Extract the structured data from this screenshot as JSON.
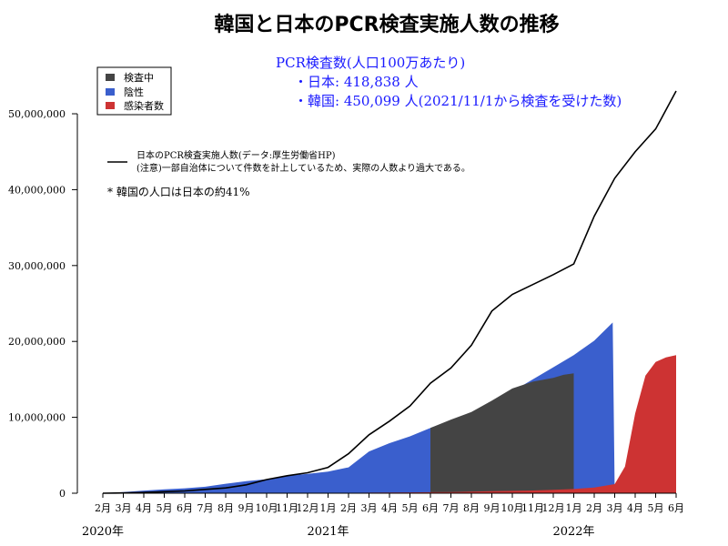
{
  "chart_data": {
    "type": "area",
    "title": "韓国と日本のPCR検査実施人数の推移",
    "info_lines": [
      "PCR検査数(人口100万あたり)",
      "・日本: 418,838 人",
      "・韓国: 450,099 人(2021/11/1から検査を受けた数)"
    ],
    "legend": {
      "placement": "top-left",
      "items": [
        {
          "label": "検査中",
          "color": "#444444"
        },
        {
          "label": "陰性",
          "color": "#3a5fcd"
        },
        {
          "label": "感染者数",
          "color": "#cd3333"
        }
      ]
    },
    "line_note": {
      "label": "日本のPCR検査実施人数(データ:厚生労働省HP)",
      "caveat": "(注意)一部自治体について件数を計上しているため、実際の人数より過大である。",
      "color": "#000000"
    },
    "footnote": "* 韓国の人口は日本の約41%",
    "x_unit": "month_index_from_2020_02",
    "x_tick_labels": [
      "2月",
      "3月",
      "4月",
      "5月",
      "6月",
      "7月",
      "8月",
      "9月",
      "10月",
      "11月",
      "12月",
      "1月",
      "2月",
      "3月",
      "4月",
      "5月",
      "6月",
      "7月",
      "8月",
      "9月",
      "10月",
      "11月",
      "12月",
      "1月",
      "2月",
      "3月",
      "4月",
      "5月",
      "6月"
    ],
    "year_labels": [
      {
        "label": "2020年",
        "at": 0
      },
      {
        "label": "2021年",
        "at": 11
      },
      {
        "label": "2022年",
        "at": 23
      }
    ],
    "y_ticks": [
      0,
      10000000,
      20000000,
      30000000,
      40000000,
      50000000
    ],
    "y_tick_labels": [
      "0",
      "10,000,000",
      "20,000,000",
      "30,000,000",
      "40,000,000",
      "50,000,000"
    ],
    "ylim": [
      0,
      53000000
    ],
    "xlim": [
      0,
      28
    ],
    "series": [
      {
        "name": "陰性",
        "color": "#3a5fcd",
        "x": [
          0,
          1,
          2,
          3,
          4,
          5,
          6,
          7,
          8,
          9,
          10,
          11,
          12,
          13,
          14,
          15,
          16,
          17,
          18,
          19,
          20,
          21,
          22,
          23,
          24,
          24.9,
          25
        ],
        "values": [
          0,
          150000,
          350000,
          500000,
          650000,
          850000,
          1250000,
          1600000,
          1850000,
          2300000,
          2550000,
          2850000,
          3400000,
          5500000,
          6600000,
          7500000,
          8600000,
          9600000,
          10600000,
          12000000,
          13400000,
          15000000,
          16600000,
          18200000,
          20100000,
          22500000,
          0
        ]
      },
      {
        "name": "検査中",
        "color": "#444444",
        "x": [
          16,
          17,
          18,
          19,
          20,
          21,
          22,
          22.5,
          23
        ],
        "values": [
          0,
          0,
          0,
          0,
          0,
          0,
          0,
          0,
          0
        ],
        "top": [
          8600000,
          9700000,
          10700000,
          12200000,
          13800000,
          14700000,
          15200000,
          15600000,
          15800000
        ]
      },
      {
        "name": "感染者数",
        "color": "#cd3333",
        "x": [
          0,
          1,
          2,
          3,
          4,
          5,
          6,
          7,
          8,
          9,
          10,
          11,
          12,
          13,
          14,
          15,
          16,
          17,
          18,
          19,
          20,
          21,
          22,
          23,
          24,
          25,
          25.5,
          26,
          26.5,
          27,
          27.5,
          28
        ],
        "values": [
          0,
          1000,
          10000,
          11000,
          12000,
          13000,
          14000,
          20000,
          22000,
          25000,
          30000,
          35000,
          50000,
          70000,
          95000,
          110000,
          130000,
          150000,
          200000,
          270000,
          310000,
          360000,
          450000,
          550000,
          750000,
          1200000,
          3500000,
          10500000,
          15500000,
          17300000,
          17900000,
          18200000
        ]
      },
      {
        "name": "日本のPCR検査実施人数",
        "color": "#000000",
        "x": [
          0,
          1,
          2,
          3,
          4,
          5,
          6,
          7,
          8,
          9,
          10,
          11,
          12,
          13,
          14,
          15,
          16,
          17,
          18,
          19,
          20,
          21,
          22,
          23,
          24,
          25,
          26,
          27,
          27.3,
          28
        ],
        "values": [
          0,
          30000,
          100000,
          200000,
          300000,
          500000,
          700000,
          1100000,
          1800000,
          2300000,
          2700000,
          3400000,
          5200000,
          7700000,
          9500000,
          11500000,
          14500000,
          16500000,
          19500000,
          24000000,
          26200000,
          27500000,
          28800000,
          30200000,
          36500000,
          41500000,
          45000000,
          48000000,
          49500000,
          53000000
        ]
      }
    ]
  }
}
